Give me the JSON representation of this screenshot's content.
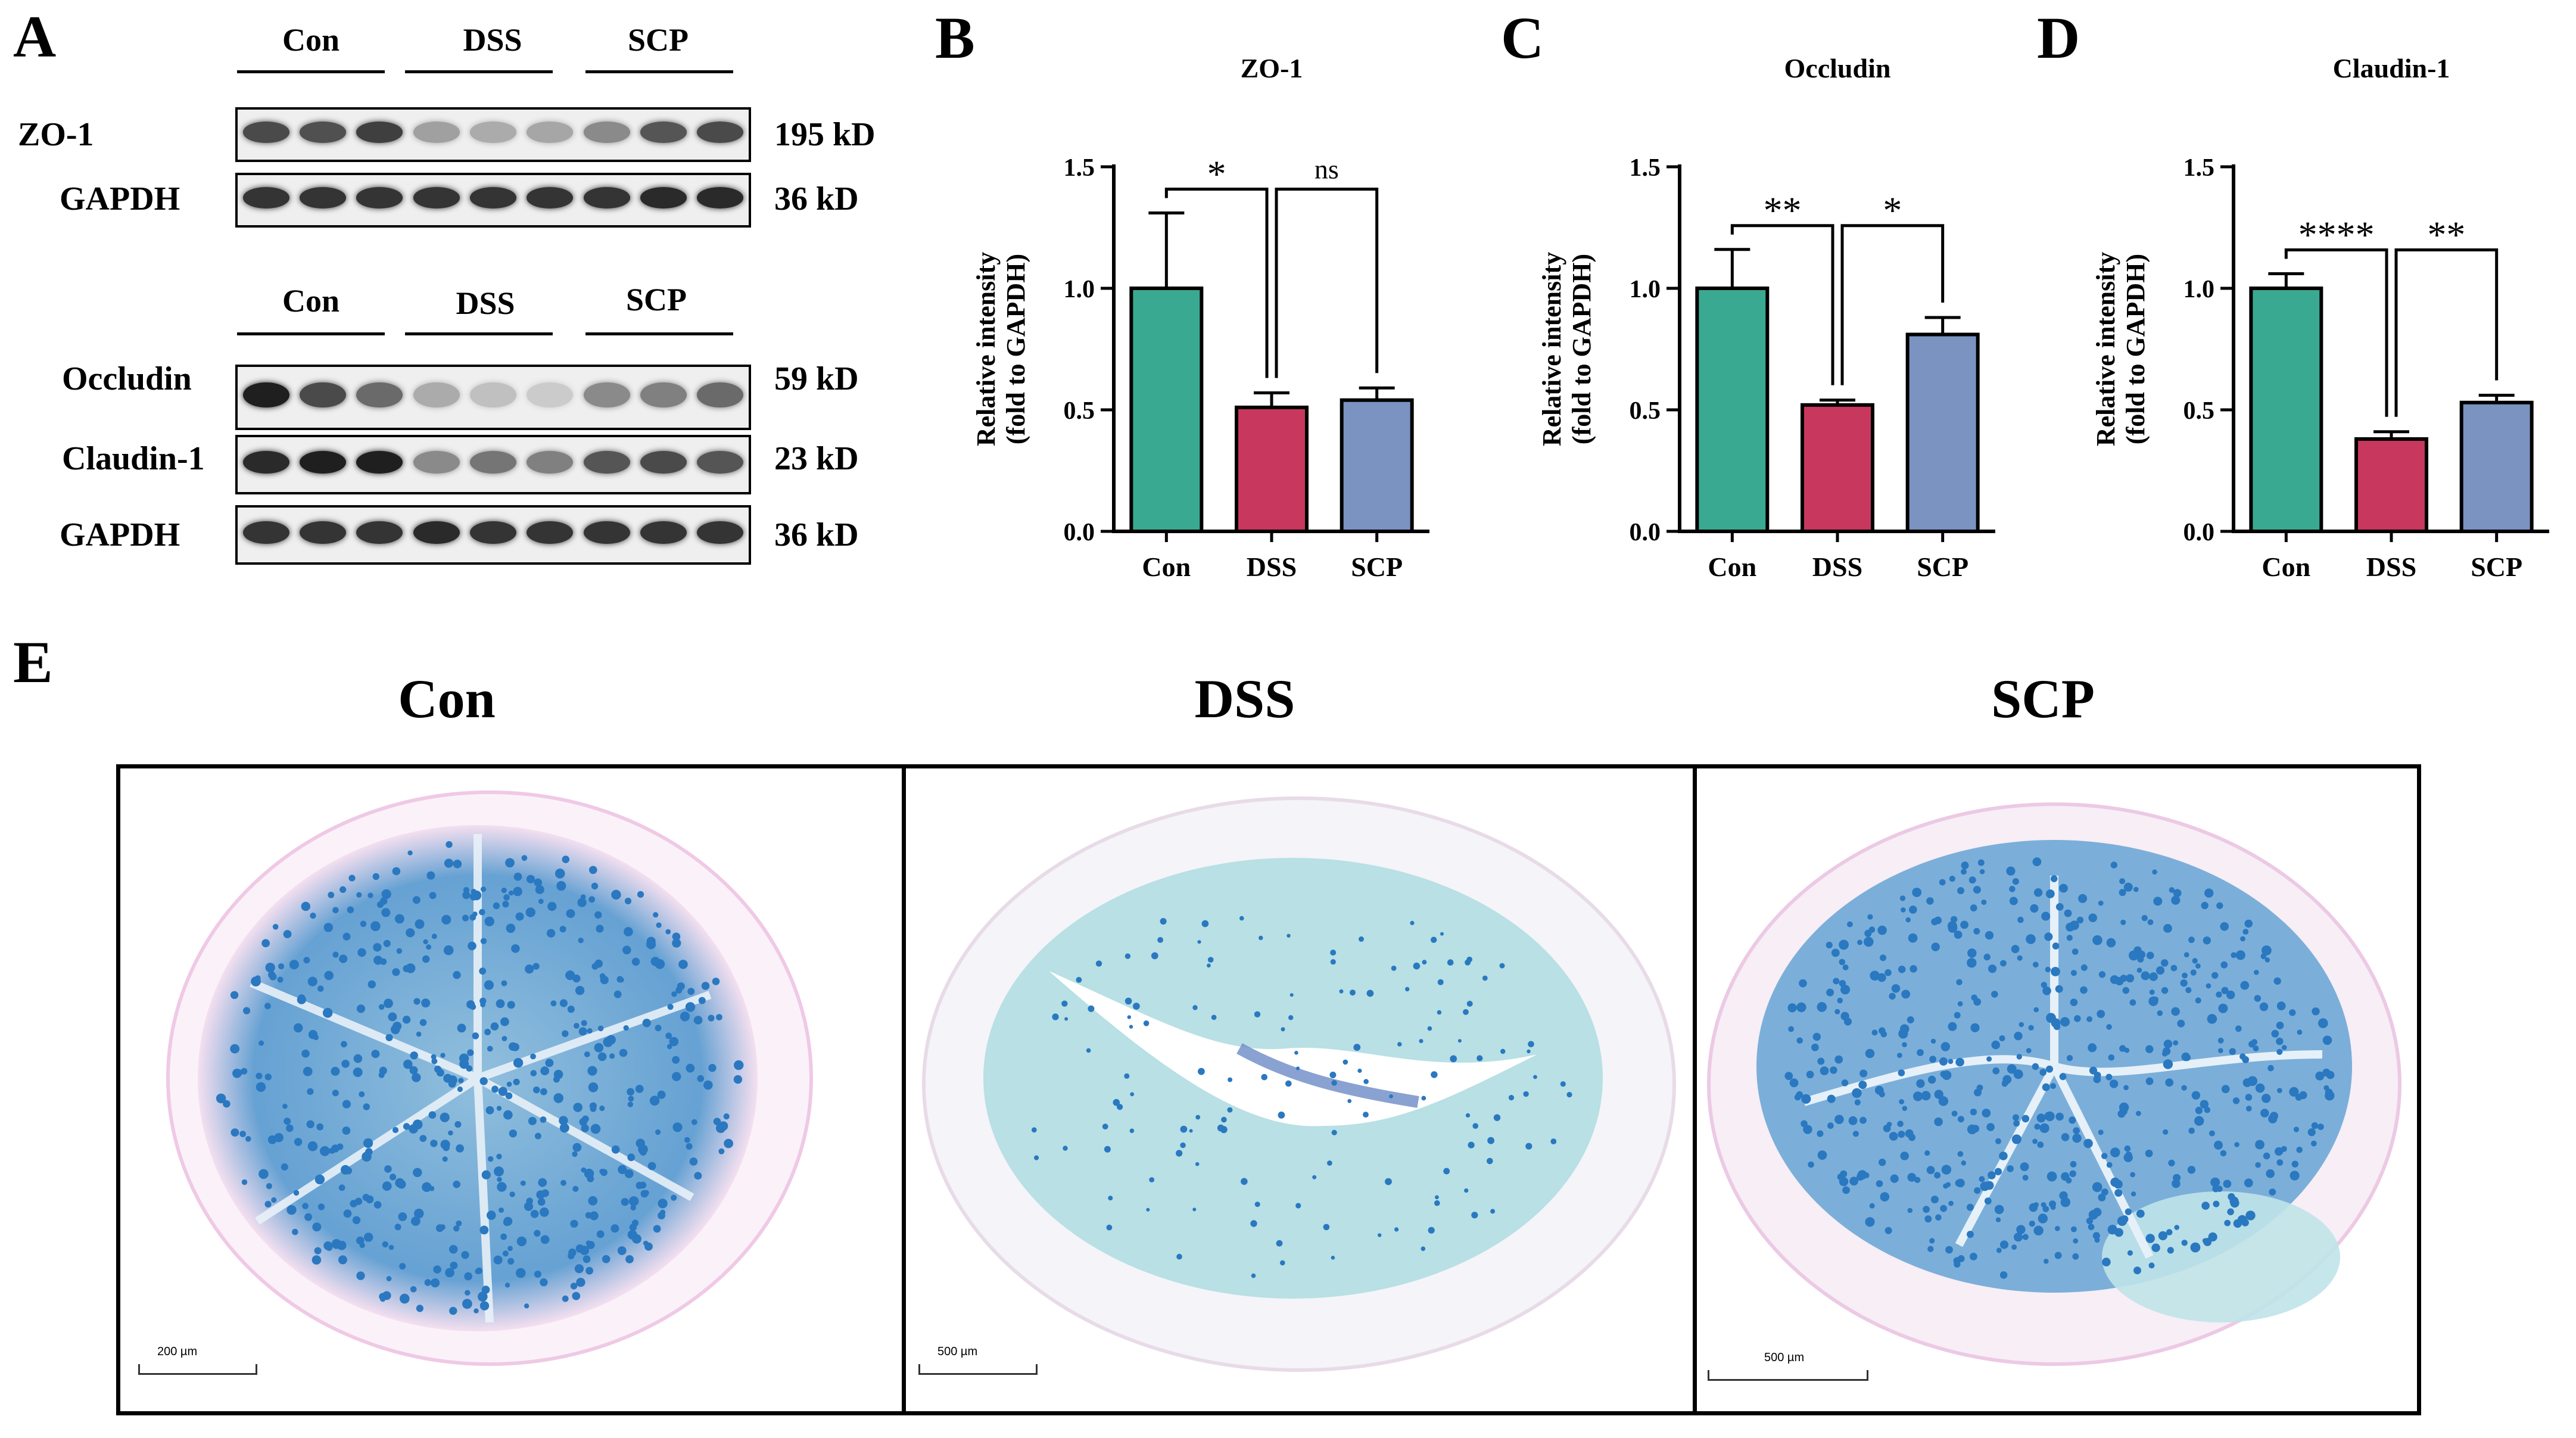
{
  "panels": {
    "a": "A",
    "b": "B",
    "c": "C",
    "d": "D",
    "e": "E"
  },
  "western_blot": {
    "groups_top": [
      "Con",
      "DSS",
      "SCP"
    ],
    "groups_bottom": [
      "Con",
      "DSS",
      "SCP"
    ],
    "rows": [
      {
        "name": "ZO-1",
        "size": "195 kD",
        "intensity": [
          0.75,
          0.72,
          0.8,
          0.35,
          0.3,
          0.32,
          0.45,
          0.7,
          0.75
        ]
      },
      {
        "name": "GAPDH",
        "size": "36 kD",
        "intensity": [
          0.85,
          0.85,
          0.85,
          0.85,
          0.85,
          0.85,
          0.85,
          0.9,
          0.9
        ]
      },
      {
        "name": "Occludin",
        "size": "59 kD",
        "intensity": [
          0.95,
          0.75,
          0.6,
          0.3,
          0.2,
          0.15,
          0.45,
          0.5,
          0.6
        ]
      },
      {
        "name": "Claudin-1",
        "size": "23 kD",
        "intensity": [
          0.9,
          0.95,
          0.95,
          0.45,
          0.55,
          0.5,
          0.7,
          0.75,
          0.7
        ]
      },
      {
        "name": "GAPDH",
        "size": "36 kD",
        "intensity": [
          0.85,
          0.85,
          0.85,
          0.9,
          0.85,
          0.85,
          0.85,
          0.85,
          0.85
        ]
      }
    ]
  },
  "chart_data": [
    {
      "type": "bar",
      "title": "ZO-1",
      "ylabel_line1": "Relative intensity",
      "ylabel_line2": "(fold to GAPDH)",
      "categories": [
        "Con",
        "DSS",
        "SCP"
      ],
      "values": [
        1.0,
        0.51,
        0.54
      ],
      "errors": [
        0.31,
        0.06,
        0.05
      ],
      "ylim": [
        0,
        1.5
      ],
      "yticks": [
        "0.0",
        "0.5",
        "1.0",
        "1.5"
      ],
      "colors": [
        "#3aa991",
        "#c7375e",
        "#7a93c1"
      ],
      "significance": [
        {
          "from": 0,
          "to": 1,
          "label": "*"
        },
        {
          "from": 1,
          "to": 2,
          "label": "ns"
        }
      ]
    },
    {
      "type": "bar",
      "title": "Occludin",
      "ylabel_line1": "Relative intensity",
      "ylabel_line2": "(fold to GAPDH)",
      "categories": [
        "Con",
        "DSS",
        "SCP"
      ],
      "values": [
        1.0,
        0.52,
        0.81
      ],
      "errors": [
        0.16,
        0.02,
        0.07
      ],
      "ylim": [
        0,
        1.5
      ],
      "yticks": [
        "0.0",
        "0.5",
        "1.0",
        "1.5"
      ],
      "colors": [
        "#3aa991",
        "#c7375e",
        "#7a93c1"
      ],
      "significance": [
        {
          "from": 0,
          "to": 1,
          "label": "**"
        },
        {
          "from": 1,
          "to": 2,
          "label": "*"
        }
      ]
    },
    {
      "type": "bar",
      "title": "Claudin-1",
      "ylabel_line1": "Relative intensity",
      "ylabel_line2": "(fold to GAPDH)",
      "categories": [
        "Con",
        "DSS",
        "SCP"
      ],
      "values": [
        1.0,
        0.38,
        0.53
      ],
      "errors": [
        0.06,
        0.03,
        0.03
      ],
      "ylim": [
        0,
        1.5
      ],
      "yticks": [
        "0.0",
        "0.5",
        "1.0",
        "1.5"
      ],
      "colors": [
        "#3aa991",
        "#c7375e",
        "#7a93c1"
      ],
      "significance": [
        {
          "from": 0,
          "to": 1,
          "label": "****"
        },
        {
          "from": 1,
          "to": 2,
          "label": "**"
        }
      ]
    }
  ],
  "histology": [
    {
      "title": "Con",
      "scale": "200 µm"
    },
    {
      "title": "DSS",
      "scale": "500 µm"
    },
    {
      "title": "SCP",
      "scale": "500 µm"
    }
  ]
}
